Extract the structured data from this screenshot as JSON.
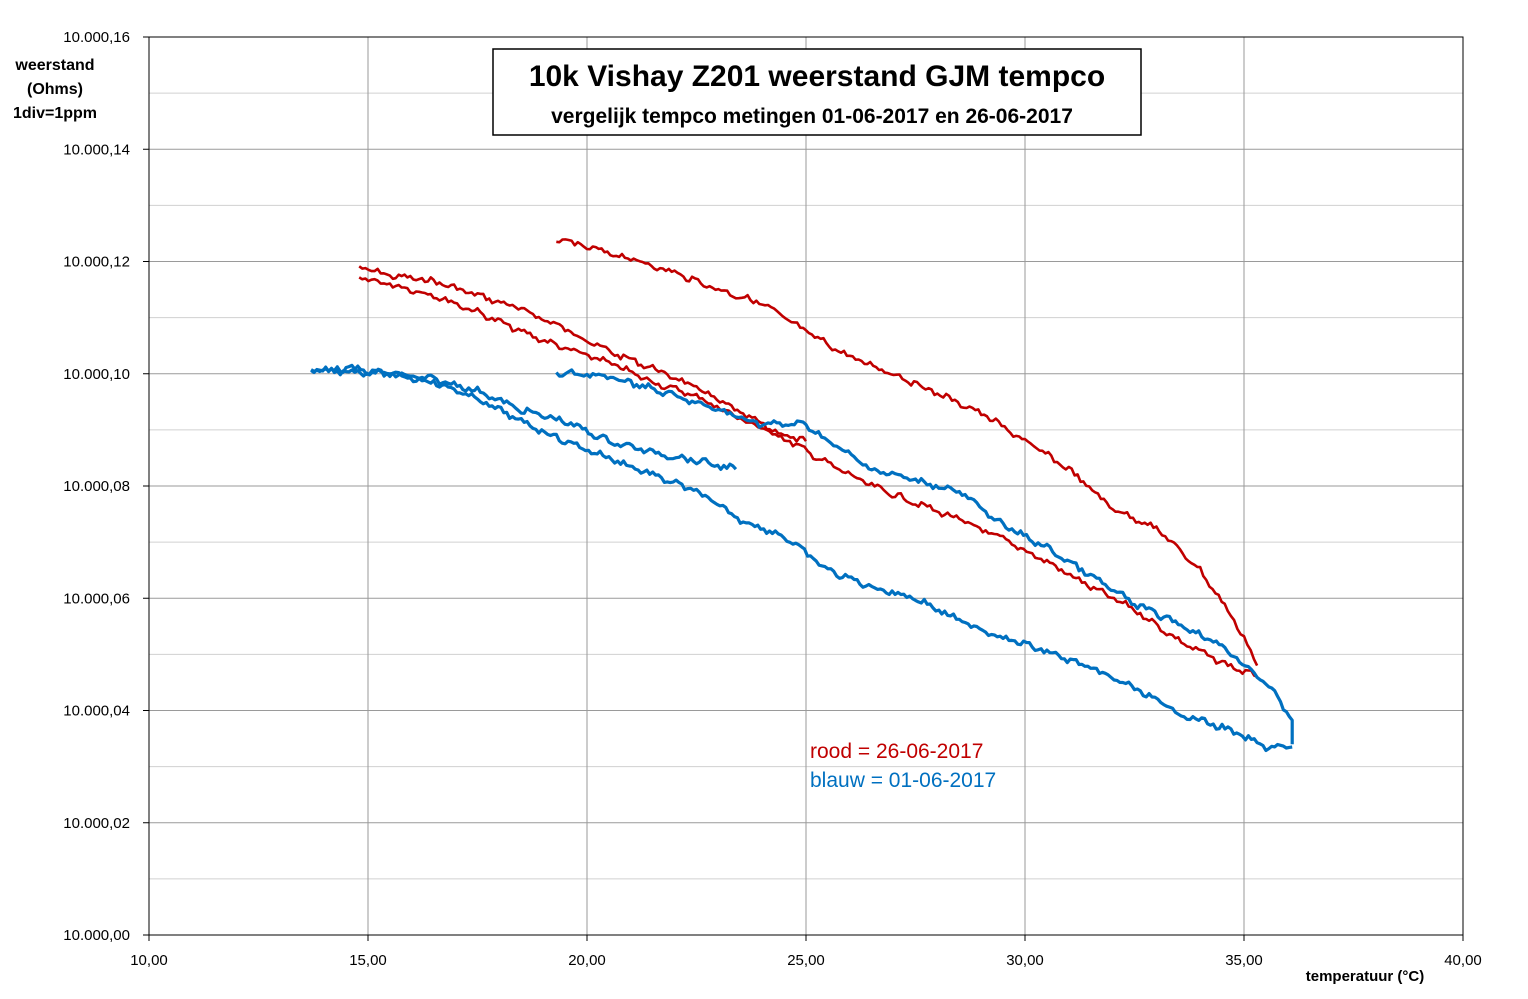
{
  "chart_data": {
    "type": "line",
    "title": "10k Vishay  Z201 weerstand GJM tempco",
    "subtitle": "vergelijk tempco metingen 01-06-2017 en 26-06-2017",
    "ylabel_lines": [
      "weerstand",
      "(Ohms)",
      "1div=1ppm"
    ],
    "xlabel": "temperatuur (°C)",
    "xlim": [
      10,
      40
    ],
    "ylim": [
      10000.0,
      10000.16
    ],
    "x_ticks": [
      "10,00",
      "15,00",
      "20,00",
      "25,00",
      "30,00",
      "35,00",
      "40,00"
    ],
    "y_ticks": [
      "10.000,00",
      "10.000,02",
      "10.000,04",
      "10.000,06",
      "10.000,08",
      "10.000,10",
      "10.000,12",
      "10.000,14",
      "10.000,16"
    ],
    "grid": true,
    "legend_text": [
      "rood   = 26-06-2017",
      "blauw = 01-06-2017"
    ],
    "legend_placement": "lower-center",
    "series": [
      {
        "color": "#c00000",
        "segments": [
          [
            [
              14.8,
              10000.119
            ],
            [
              15.5,
              10000.1175
            ],
            [
              16.5,
              10000.1165
            ],
            [
              17.5,
              10000.114
            ],
            [
              18.5,
              10000.1115
            ],
            [
              19.5,
              10000.108
            ],
            [
              20.5,
              10000.104
            ],
            [
              21.5,
              10000.101
            ],
            [
              22.5,
              10000.0975
            ],
            [
              23.5,
              10000.093
            ],
            [
              24.5,
              10000.089
            ],
            [
              25.0,
              10000.088
            ]
          ],
          [
            [
              14.8,
              10000.117
            ],
            [
              15.5,
              10000.116
            ],
            [
              16.5,
              10000.114
            ],
            [
              17.5,
              10000.111
            ],
            [
              18.5,
              10000.1075
            ],
            [
              19.5,
              10000.1045
            ],
            [
              20.5,
              10000.102
            ],
            [
              21.5,
              10000.0985
            ],
            [
              22.5,
              10000.096
            ],
            [
              23.5,
              10000.092
            ],
            [
              24.5,
              10000.0885
            ],
            [
              25.5,
              10000.084
            ],
            [
              26.5,
              10000.08
            ],
            [
              27.5,
              10000.077
            ],
            [
              28.5,
              10000.074
            ],
            [
              29.5,
              10000.0705
            ],
            [
              30.5,
              10000.0665
            ],
            [
              31.5,
              10000.062
            ],
            [
              32.5,
              10000.058
            ],
            [
              33.5,
              10000.0525
            ],
            [
              34.5,
              10000.0485
            ],
            [
              35.3,
              10000.046
            ]
          ],
          [
            [
              19.3,
              10000.124
            ],
            [
              20.0,
              10000.1225
            ],
            [
              21.0,
              10000.1205
            ],
            [
              22.0,
              10000.118
            ],
            [
              23.0,
              10000.115
            ],
            [
              24.0,
              10000.1125
            ],
            [
              25.0,
              10000.1075
            ],
            [
              26.0,
              10000.103
            ],
            [
              27.0,
              10000.1
            ],
            [
              28.0,
              10000.0965
            ],
            [
              29.0,
              10000.093
            ],
            [
              30.0,
              10000.088
            ],
            [
              31.0,
              10000.083
            ],
            [
              32.0,
              10000.076
            ],
            [
              33.0,
              10000.0725
            ],
            [
              34.0,
              10000.065
            ],
            [
              34.7,
              10000.057
            ],
            [
              35.0,
              10000.053
            ],
            [
              35.3,
              10000.048
            ]
          ]
        ]
      },
      {
        "color": "#0070c0",
        "segments": [
          [
            [
              13.7,
              10000.1005
            ],
            [
              14.5,
              10000.101
            ],
            [
              15.5,
              10000.1
            ],
            [
              16.5,
              10000.099
            ],
            [
              17.5,
              10000.097
            ],
            [
              18.5,
              10000.0935
            ],
            [
              19.5,
              10000.0915
            ],
            [
              20.5,
              10000.088
            ],
            [
              21.5,
              10000.086
            ],
            [
              22.5,
              10000.0845
            ],
            [
              23.4,
              10000.083
            ]
          ],
          [
            [
              13.7,
              10000.1005
            ],
            [
              14.5,
              10000.1005
            ],
            [
              15.5,
              10000.1
            ],
            [
              16.5,
              10000.0985
            ],
            [
              17.5,
              10000.0955
            ],
            [
              18.5,
              10000.0915
            ],
            [
              19.5,
              10000.088
            ],
            [
              20.5,
              10000.085
            ],
            [
              21.5,
              10000.082
            ],
            [
              22.5,
              10000.079
            ],
            [
              23.5,
              10000.074
            ],
            [
              24.5,
              10000.071
            ],
            [
              25.5,
              10000.065
            ],
            [
              26.5,
              10000.062
            ],
            [
              27.5,
              10000.06
            ],
            [
              28.5,
              10000.056
            ],
            [
              29.5,
              10000.053
            ],
            [
              30.5,
              10000.0505
            ],
            [
              31.5,
              10000.0475
            ],
            [
              32.5,
              10000.044
            ],
            [
              33.5,
              10000.0395
            ],
            [
              34.5,
              10000.037
            ],
            [
              35.5,
              10000.0335
            ],
            [
              36.1,
              10000.0335
            ]
          ],
          [
            [
              19.3,
              10000.1
            ],
            [
              20.0,
              10000.1
            ],
            [
              21.0,
              10000.0985
            ],
            [
              22.0,
              10000.096
            ],
            [
              23.0,
              10000.0935
            ],
            [
              24.0,
              10000.091
            ],
            [
              25.0,
              10000.091
            ],
            [
              25.5,
              10000.088
            ],
            [
              26.5,
              10000.083
            ],
            [
              27.5,
              10000.081
            ],
            [
              28.5,
              10000.079
            ],
            [
              29.5,
              10000.073
            ],
            [
              30.5,
              10000.069
            ],
            [
              31.5,
              10000.064
            ],
            [
              32.5,
              10000.059
            ],
            [
              33.5,
              10000.0555
            ],
            [
              34.5,
              10000.0515
            ],
            [
              35.5,
              10000.045
            ],
            [
              36.1,
              10000.0385
            ],
            [
              36.1,
              10000.034
            ]
          ]
        ]
      }
    ]
  }
}
